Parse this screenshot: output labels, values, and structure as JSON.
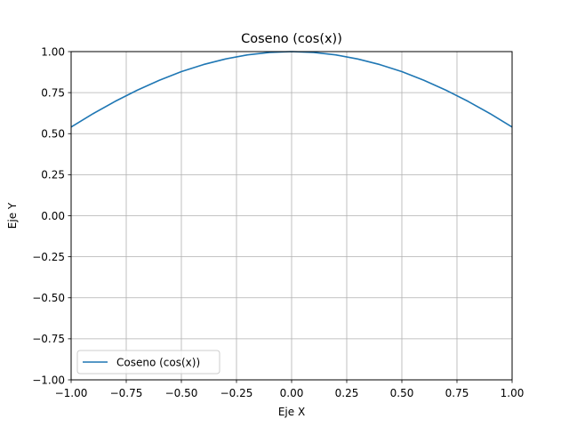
{
  "chart_data": {
    "type": "line",
    "title": "Coseno (cos(x))",
    "xlabel": "Eje X",
    "ylabel": "Eje Y",
    "xlim": [
      -1.0,
      1.0
    ],
    "ylim": [
      -1.0,
      1.0
    ],
    "grid": true,
    "legend_position": "lower-left",
    "x_ticks": [
      "−1.00",
      "−0.75",
      "−0.50",
      "−0.25",
      "0.00",
      "0.25",
      "0.50",
      "0.75",
      "1.00"
    ],
    "y_ticks": [
      "−1.00",
      "−0.75",
      "−0.50",
      "−0.25",
      "0.00",
      "0.25",
      "0.50",
      "0.75",
      "1.00"
    ],
    "series": [
      {
        "name": "Coseno (cos(x))",
        "color": "#1f77b4",
        "x": [
          -1.0,
          -0.9,
          -0.8,
          -0.7,
          -0.6,
          -0.5,
          -0.4,
          -0.3,
          -0.2,
          -0.1,
          0.0,
          0.1,
          0.2,
          0.3,
          0.4,
          0.5,
          0.6,
          0.7,
          0.8,
          0.9,
          1.0
        ],
        "y": [
          0.54,
          0.622,
          0.697,
          0.765,
          0.825,
          0.878,
          0.921,
          0.955,
          0.98,
          0.995,
          1.0,
          0.995,
          0.98,
          0.955,
          0.921,
          0.878,
          0.825,
          0.765,
          0.697,
          0.622,
          0.54
        ]
      }
    ]
  }
}
